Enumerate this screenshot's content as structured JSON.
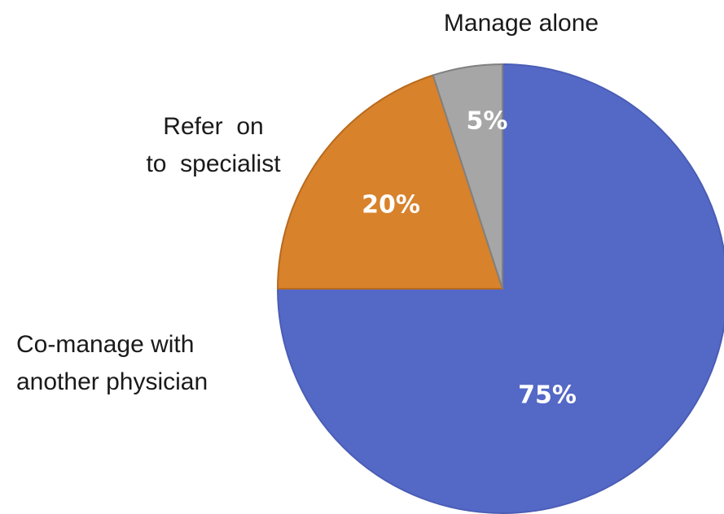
{
  "chart_data": {
    "type": "pie",
    "categories": [
      "Co-manage with\nanother physician",
      "Refer  on\nto  specialist",
      "Manage alone"
    ],
    "values": [
      75,
      20,
      5
    ],
    "value_labels": [
      "75%",
      "20%",
      "5%"
    ],
    "colors": [
      "#5468c6",
      "#d8822c",
      "#a6a6a6"
    ],
    "start_angle": 0,
    "direction": "clockwise"
  }
}
